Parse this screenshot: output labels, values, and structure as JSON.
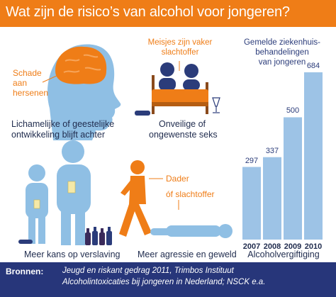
{
  "title": "Wat zijn de risico’s van alcohol voor jongeren?",
  "brain_panel": {
    "callout": [
      "Schade",
      "aan",
      "hersenen"
    ],
    "caption": [
      "Lichamelijke of geestelijke",
      "ontwikkeling blijft achter"
    ]
  },
  "bed_panel": {
    "callout": [
      "Meisjes zijn vaker",
      "slachtoffer"
    ],
    "caption": [
      "Onveilige of",
      "ongewenste seks"
    ]
  },
  "addiction_panel": {
    "caption": "Meer kans op verslaving"
  },
  "violence_panel": {
    "callout_1": "Dader",
    "callout_2": "óf slachtoffer",
    "caption": "Meer agressie en geweld"
  },
  "chart_data": {
    "type": "bar",
    "title": "Gemelde ziekenhuis-behandelingen van jongeren",
    "title_lines": [
      "Gemelde ziekenhuis-",
      "behandelingen",
      "van jongeren"
    ],
    "categories": [
      "2007",
      "2008",
      "2009",
      "2010"
    ],
    "values": [
      297,
      337,
      500,
      684
    ],
    "value_labels": [
      "297",
      "337",
      "500",
      "684"
    ],
    "caption": "Alcoholvergiftiging",
    "bar_color": "#9dc3e6"
  },
  "footer": {
    "label": "Bronnen:",
    "sources": [
      "Jeugd en riskant gedrag 2011, Trimbos Instituut",
      "Alcoholintoxicaties bij jongeren in Nederland; NSCK e.a."
    ]
  },
  "colors": {
    "header": "#ef7d17",
    "footer": "#27367a",
    "figure": "#8fbfe4",
    "accent": "#ef7d17",
    "text": "#1f2b4d"
  },
  "icons": [
    "brain-head-icon",
    "couple-in-bed-icon",
    "drinking-people-icon",
    "bottles-icon",
    "aggressor-victim-icon",
    "glass-icon"
  ]
}
